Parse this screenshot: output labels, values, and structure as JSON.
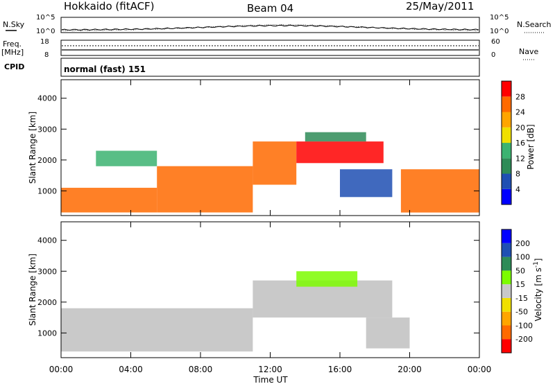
{
  "header": {
    "station": "Hokkaido (fitACF)",
    "beam": "Beam 04",
    "date": "25/May/2011"
  },
  "noise_panel": {
    "left_label": "N.Sky",
    "right_label": "N.Search",
    "top_tick": "10^5",
    "bottom_tick": "10^0"
  },
  "freq_panel": {
    "left_label_1": "Freq.",
    "left_label_2": "[MHz]",
    "left_top_tick": "18",
    "left_bottom_tick": "8",
    "right_label": "Nave",
    "right_top_tick": "60",
    "right_bottom_tick": "0"
  },
  "cpid_panel": {
    "label": "CPID",
    "value": "normal (fast) 151"
  },
  "colors": {
    "power_scale": [
      "#0000ff",
      "#1f4fb3",
      "#2e8b57",
      "#3cb371",
      "#f0e000",
      "#ffa500",
      "#ff6a00",
      "#ff0000"
    ],
    "velocity_scale": [
      "#ff0000",
      "#ff6a00",
      "#ffa500",
      "#f0e000",
      "#c8c8c8",
      "#7cfc00",
      "#2e8b57",
      "#1f4fb3",
      "#0000ff"
    ],
    "ground_scatter": "#c0c0c0"
  },
  "chart_data": [
    {
      "type": "heatmap",
      "title": "",
      "xlabel": "Time UT",
      "ylabel": "Slant Range [km]",
      "xlim": [
        0,
        24
      ],
      "ylim": [
        200,
        4600
      ],
      "x_ticks": [
        "00:00",
        "04:00",
        "08:00",
        "12:00",
        "16:00",
        "20:00",
        "00:00"
      ],
      "y_ticks": [
        1000,
        2000,
        3000,
        4000
      ],
      "colorbar": {
        "label": "Power [dB]",
        "ticks": [
          "4",
          "8",
          "12",
          "16",
          "20",
          "24",
          "28"
        ],
        "range": [
          0,
          30
        ]
      },
      "regions": [
        {
          "t0": 0.0,
          "t1": 5.5,
          "r0": 300,
          "r1": 1100,
          "value": 26
        },
        {
          "t0": 5.5,
          "t1": 11.0,
          "r0": 300,
          "r1": 1800,
          "value": 25
        },
        {
          "t0": 11.0,
          "t1": 13.5,
          "r0": 1200,
          "r1": 2600,
          "value": 24
        },
        {
          "t0": 13.5,
          "t1": 18.5,
          "r0": 1900,
          "r1": 2600,
          "value": 27
        },
        {
          "t0": 14.0,
          "t1": 17.5,
          "r0": 2600,
          "r1": 2900,
          "value": 10
        },
        {
          "t0": 16.0,
          "t1": 19.0,
          "r0": 800,
          "r1": 1700,
          "value": 6
        },
        {
          "t0": 19.5,
          "t1": 24.0,
          "r0": 300,
          "r1": 1700,
          "value": 26
        },
        {
          "t0": 2.0,
          "t1": 5.5,
          "r0": 1800,
          "r1": 2300,
          "value": 14
        }
      ]
    },
    {
      "type": "heatmap",
      "title": "",
      "xlabel": "Time UT",
      "ylabel": "Slant Range [km]",
      "xlim": [
        0,
        24
      ],
      "ylim": [
        200,
        4600
      ],
      "x_ticks": [
        "00:00",
        "04:00",
        "08:00",
        "12:00",
        "16:00",
        "20:00",
        "00:00"
      ],
      "y_ticks": [
        1000,
        2000,
        3000,
        4000
      ],
      "colorbar": {
        "label": "Velocity [m s^-1]",
        "ticks": [
          "-200",
          "-100",
          "-50",
          "-15",
          "15",
          "50",
          "100",
          "200"
        ],
        "range": [
          -250,
          250
        ]
      },
      "regions": [
        {
          "t0": 0.0,
          "t1": 11.0,
          "r0": 400,
          "r1": 1800,
          "value": 0
        },
        {
          "t0": 11.0,
          "t1": 19.0,
          "r0": 1500,
          "r1": 2700,
          "value": 0
        },
        {
          "t0": 17.5,
          "t1": 20.0,
          "r0": 500,
          "r1": 1500,
          "value": 0
        },
        {
          "t0": 13.5,
          "t1": 17.0,
          "r0": 2500,
          "r1": 3000,
          "value": 30
        }
      ]
    }
  ]
}
